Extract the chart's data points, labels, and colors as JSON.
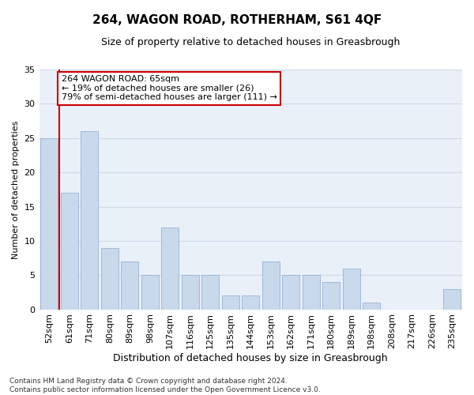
{
  "title": "264, WAGON ROAD, ROTHERHAM, S61 4QF",
  "subtitle": "Size of property relative to detached houses in Greasbrough",
  "xlabel": "Distribution of detached houses by size in Greasbrough",
  "ylabel": "Number of detached properties",
  "categories": [
    "52sqm",
    "61sqm",
    "71sqm",
    "80sqm",
    "89sqm",
    "98sqm",
    "107sqm",
    "116sqm",
    "125sqm",
    "135sqm",
    "144sqm",
    "153sqm",
    "162sqm",
    "171sqm",
    "180sqm",
    "189sqm",
    "198sqm",
    "208sqm",
    "217sqm",
    "226sqm",
    "235sqm"
  ],
  "values": [
    25,
    17,
    26,
    9,
    7,
    5,
    12,
    5,
    5,
    2,
    2,
    7,
    5,
    5,
    4,
    6,
    1,
    0,
    0,
    0,
    3
  ],
  "bar_color": "#c9d9ec",
  "bar_edge_color": "#a0b8d8",
  "ylim": [
    0,
    35
  ],
  "yticks": [
    0,
    5,
    10,
    15,
    20,
    25,
    30,
    35
  ],
  "vline_x": 0.5,
  "vline_color": "#cc0000",
  "annotation_text": "264 WAGON ROAD: 65sqm\n← 19% of detached houses are smaller (26)\n79% of semi-detached houses are larger (111) →",
  "annotation_box_color": "#ffffff",
  "annotation_box_edgecolor": "#cc0000",
  "footer_line1": "Contains HM Land Registry data © Crown copyright and database right 2024.",
  "footer_line2": "Contains public sector information licensed under the Open Government Licence v3.0.",
  "grid_color": "#d0d8e8",
  "background_color": "#eaf0f8",
  "title_fontsize": 11,
  "subtitle_fontsize": 9,
  "xlabel_fontsize": 9,
  "ylabel_fontsize": 8,
  "tick_fontsize": 8,
  "footer_fontsize": 6.5,
  "ann_fontsize": 8
}
